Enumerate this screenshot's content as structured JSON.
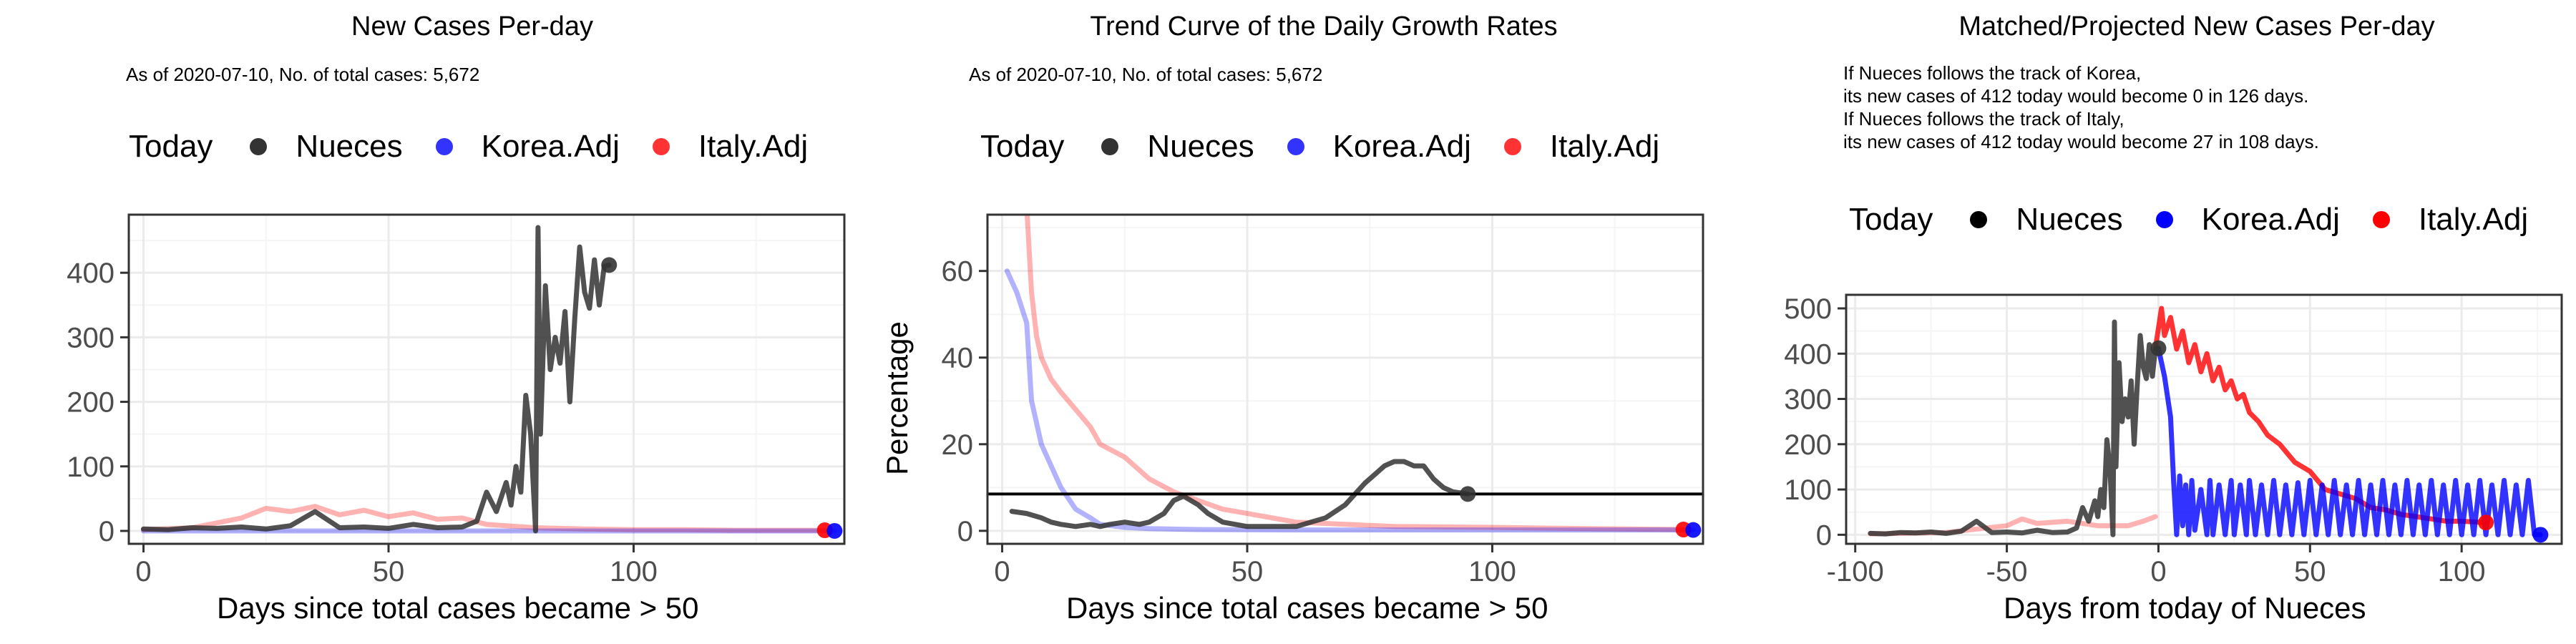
{
  "colors": {
    "today": "#333333",
    "korea": "#0000ff",
    "italy": "#ff0000",
    "grid_major": "#ebebeb",
    "grid_minor": "#f5f5f5"
  },
  "chart_data": [
    {
      "type": "line",
      "title": "New Cases Per-day",
      "subtitle_lines": [
        "As of 2020-07-10, No. of total cases: 5,672"
      ],
      "xlabel": "Days since total cases became > 50",
      "ylabel": "",
      "xlim": [
        -3,
        143
      ],
      "ylim": [
        -20,
        490
      ],
      "xticks": [
        0,
        50,
        100
      ],
      "yticks": [
        0,
        100,
        200,
        300,
        400
      ],
      "grid": true,
      "legend": {
        "title": "Today",
        "position": "top",
        "entries": [
          "Nueces",
          "Korea.Adj",
          "Italy.Adj"
        ]
      },
      "series": [
        {
          "name": "Italy.Adj",
          "style": "faded",
          "x": [
            0,
            10,
            20,
            25,
            30,
            35,
            40,
            45,
            50,
            55,
            60,
            65,
            70,
            80,
            90,
            100,
            110,
            120,
            130,
            139
          ],
          "y": [
            2,
            5,
            20,
            35,
            30,
            38,
            25,
            32,
            22,
            28,
            18,
            20,
            10,
            5,
            3,
            2,
            2,
            1,
            1,
            1
          ]
        },
        {
          "name": "Korea.Adj",
          "style": "faded",
          "x": [
            0,
            10,
            20,
            40,
            60,
            80,
            100,
            120,
            141
          ],
          "y": [
            0,
            0,
            0,
            0,
            0,
            0,
            0,
            0,
            0
          ]
        },
        {
          "name": "Nueces",
          "style": "solid",
          "x": [
            0,
            5,
            10,
            15,
            20,
            25,
            30,
            35,
            40,
            45,
            50,
            55,
            60,
            65,
            68,
            70,
            72,
            74,
            75,
            76,
            77,
            78,
            79,
            80,
            80.5,
            81,
            82,
            83,
            84,
            85,
            86,
            87,
            88,
            89,
            90,
            91,
            92,
            93,
            94,
            95
          ],
          "y": [
            3,
            2,
            5,
            4,
            6,
            3,
            8,
            30,
            5,
            6,
            4,
            10,
            5,
            6,
            15,
            60,
            30,
            75,
            40,
            100,
            60,
            210,
            150,
            0,
            470,
            150,
            380,
            250,
            300,
            260,
            340,
            200,
            330,
            440,
            370,
            345,
            420,
            350,
            410,
            412
          ]
        }
      ],
      "points": [
        {
          "name": "Nueces",
          "x": 95,
          "y": 412
        },
        {
          "name": "Italy.Adj",
          "x": 139,
          "y": 1
        },
        {
          "name": "Korea.Adj",
          "x": 141,
          "y": 0
        }
      ]
    },
    {
      "type": "line",
      "title": "Trend Curve of the Daily Growth Rates",
      "subtitle_lines": [
        "As of 2020-07-10, No. of total cases: 5,672"
      ],
      "xlabel": "Days since total cases became > 50",
      "ylabel": "Percentage",
      "xlim": [
        -3,
        143
      ],
      "ylim": [
        -3,
        73
      ],
      "xticks": [
        0,
        50,
        100
      ],
      "yticks": [
        0,
        20,
        40,
        60
      ],
      "grid": true,
      "hline": 8.5,
      "legend": {
        "title": "Today",
        "position": "top",
        "entries": [
          "Nueces",
          "Korea.Adj",
          "Italy.Adj"
        ]
      },
      "series": [
        {
          "name": "Italy.Adj",
          "style": "faded",
          "x": [
            5,
            6,
            7,
            8,
            10,
            12,
            15,
            18,
            20,
            25,
            30,
            35,
            40,
            45,
            50,
            60,
            70,
            80,
            100,
            120,
            139
          ],
          "y": [
            75,
            55,
            45,
            40,
            35,
            32,
            28,
            24,
            20,
            17,
            12,
            9,
            7,
            5,
            4,
            2,
            1.5,
            1,
            0.8,
            0.5,
            0.3
          ]
        },
        {
          "name": "Korea.Adj",
          "style": "faded",
          "x": [
            1,
            3,
            5,
            6,
            7,
            8,
            10,
            12,
            15,
            18,
            20,
            25,
            30,
            40,
            60,
            100,
            141
          ],
          "y": [
            60,
            55,
            48,
            30,
            25,
            20,
            15,
            10,
            5,
            3,
            1.5,
            0.8,
            0.5,
            0.3,
            0.2,
            0.2,
            0.2
          ]
        },
        {
          "name": "Nueces",
          "style": "solid",
          "x": [
            2,
            5,
            8,
            10,
            12,
            15,
            18,
            20,
            22,
            25,
            28,
            30,
            33,
            35,
            37,
            40,
            42,
            45,
            50,
            55,
            60,
            63,
            66,
            70,
            74,
            76,
            78,
            80,
            82,
            84,
            86,
            88,
            90,
            92,
            95
          ],
          "y": [
            4.5,
            4,
            3,
            2,
            1.5,
            1,
            1.5,
            1,
            1.5,
            2,
            1.5,
            2,
            4,
            7,
            8,
            6,
            4,
            2,
            1,
            1,
            1,
            2,
            3,
            6,
            11,
            13,
            15,
            16,
            16,
            15,
            15,
            12,
            10,
            9,
            8.5
          ]
        }
      ],
      "points": [
        {
          "name": "Nueces",
          "x": 95,
          "y": 8.5
        },
        {
          "name": "Italy.Adj",
          "x": 139,
          "y": 0.3
        },
        {
          "name": "Korea.Adj",
          "x": 141,
          "y": 0.2
        }
      ]
    },
    {
      "type": "line",
      "title": "Matched/Projected New Cases Per-day",
      "subtitle_lines": [
        "If Nueces follows the track of Korea,",
        "its new cases of 412 today would become 0 in 126 days.",
        "If Nueces follows the track of Italy,",
        "its new cases of 412 today would become 27 in 108 days."
      ],
      "xlabel": "Days from today of Nueces",
      "ylabel": "",
      "xlim": [
        -103,
        133
      ],
      "ylim": [
        -20,
        530
      ],
      "xticks": [
        -100,
        -50,
        0,
        50,
        100
      ],
      "yticks": [
        0,
        100,
        200,
        300,
        400,
        500
      ],
      "grid": true,
      "legend": {
        "title": "Today",
        "position": "top",
        "entries": [
          "Nueces",
          "Korea.Adj",
          "Italy.Adj"
        ]
      },
      "series": [
        {
          "name": "Italy.Adj",
          "style": "faded",
          "x": [
            -95,
            -70,
            -50,
            -45,
            -40,
            -30,
            -20,
            -10,
            -5,
            -1
          ],
          "y": [
            2,
            5,
            20,
            35,
            25,
            30,
            20,
            20,
            30,
            40
          ]
        },
        {
          "name": "Italy.Adj",
          "style": "bold",
          "x": [
            -1,
            1,
            2,
            4,
            6,
            8,
            10,
            12,
            14,
            16,
            18,
            20,
            22,
            24,
            26,
            28,
            30,
            33,
            36,
            40,
            45,
            50,
            55,
            60,
            65,
            70,
            75,
            80,
            85,
            90,
            95,
            100,
            105,
            108
          ],
          "y": [
            412,
            500,
            440,
            480,
            410,
            450,
            380,
            420,
            360,
            400,
            340,
            370,
            320,
            340,
            300,
            310,
            270,
            250,
            220,
            200,
            160,
            140,
            100,
            90,
            80,
            60,
            55,
            45,
            40,
            35,
            30,
            30,
            28,
            27
          ]
        },
        {
          "name": "Korea.Adj",
          "style": "bold",
          "x": [
            0,
            2,
            4,
            5,
            6,
            7,
            8,
            9,
            10,
            11,
            12,
            14,
            16,
            17,
            18,
            20,
            22,
            24,
            25,
            27,
            29,
            30,
            32,
            34,
            36,
            38,
            40,
            42,
            44,
            46,
            48,
            50,
            52,
            54,
            56,
            58,
            60,
            62,
            64,
            66,
            68,
            70,
            72,
            74,
            76,
            78,
            80,
            82,
            84,
            86,
            88,
            90,
            92,
            94,
            96,
            98,
            100,
            102,
            104,
            106,
            108,
            110,
            112,
            114,
            116,
            118,
            120,
            122,
            124,
            126
          ],
          "y": [
            412,
            350,
            260,
            120,
            0,
            130,
            20,
            110,
            0,
            120,
            10,
            100,
            0,
            120,
            0,
            110,
            0,
            120,
            0,
            110,
            0,
            120,
            0,
            110,
            0,
            120,
            0,
            110,
            0,
            115,
            0,
            120,
            0,
            110,
            0,
            120,
            0,
            110,
            0,
            120,
            0,
            110,
            0,
            120,
            0,
            110,
            0,
            120,
            0,
            110,
            0,
            120,
            0,
            110,
            0,
            120,
            0,
            110,
            0,
            120,
            0,
            110,
            0,
            120,
            0,
            110,
            0,
            120,
            0,
            0
          ]
        },
        {
          "name": "Nueces",
          "style": "solid",
          "x": [
            -95,
            -90,
            -85,
            -80,
            -75,
            -70,
            -65,
            -60,
            -55,
            -50,
            -45,
            -40,
            -35,
            -30,
            -27,
            -25,
            -23,
            -21,
            -20,
            -19,
            -18,
            -17,
            -16,
            -15,
            -14.5,
            -14,
            -13,
            -12,
            -11,
            -10,
            -9,
            -8,
            -7,
            -6,
            -5,
            -4,
            -3,
            -2,
            -1,
            0
          ],
          "y": [
            3,
            2,
            5,
            4,
            6,
            3,
            8,
            30,
            5,
            6,
            4,
            10,
            5,
            6,
            15,
            60,
            30,
            75,
            40,
            100,
            60,
            210,
            150,
            0,
            470,
            150,
            380,
            250,
            300,
            260,
            340,
            200,
            330,
            440,
            370,
            345,
            420,
            350,
            410,
            412
          ]
        }
      ],
      "points": [
        {
          "name": "Nueces",
          "x": 0,
          "y": 412
        },
        {
          "name": "Italy.Adj",
          "x": 108,
          "y": 27
        },
        {
          "name": "Korea.Adj",
          "x": 126,
          "y": 0
        }
      ]
    }
  ]
}
